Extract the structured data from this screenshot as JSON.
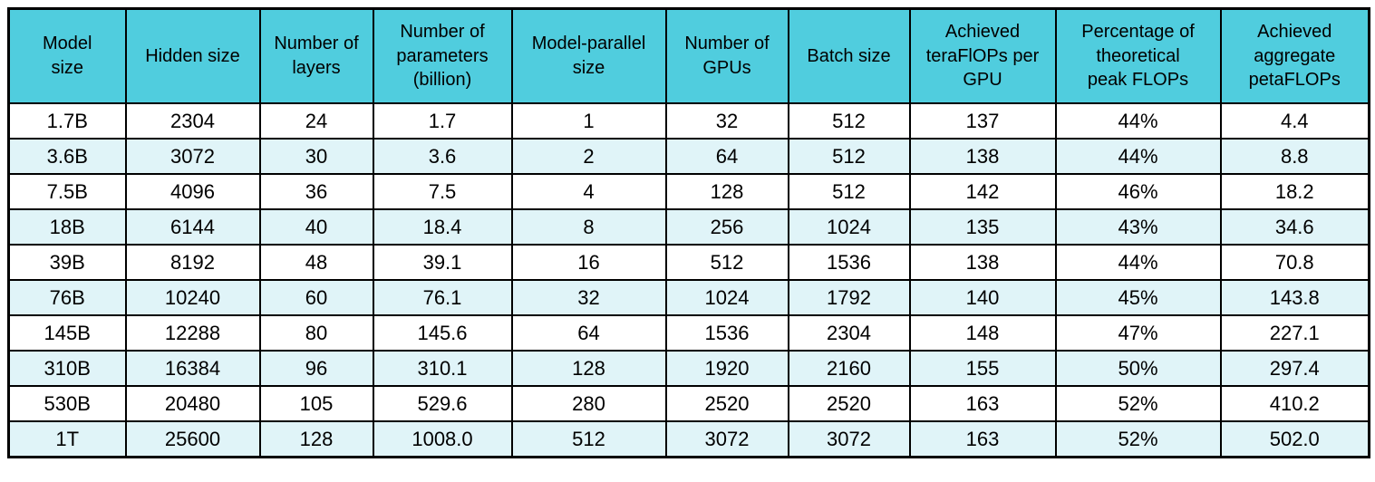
{
  "style": {
    "header_bg": "#50cdde",
    "row_bg": "#ffffff",
    "row_alt_bg": "#e0f4f8",
    "border_color": "#000000",
    "text_color": "#000000"
  },
  "chart_data": {
    "type": "table",
    "columns": [
      "Model\nsize",
      "Hidden size",
      "Number of\nlayers",
      "Number of\nparameters\n(billion)",
      "Model-parallel\nsize",
      "Number of\nGPUs",
      "Batch size",
      "Achieved\nteraFlOPs per\nGPU",
      "Percentage of\ntheoretical\npeak FLOPs",
      "Achieved\naggregate\npetaFLOPs"
    ],
    "rows": [
      [
        "1.7B",
        "2304",
        "24",
        "1.7",
        "1",
        "32",
        "512",
        "137",
        "44%",
        "4.4"
      ],
      [
        "3.6B",
        "3072",
        "30",
        "3.6",
        "2",
        "64",
        "512",
        "138",
        "44%",
        "8.8"
      ],
      [
        "7.5B",
        "4096",
        "36",
        "7.5",
        "4",
        "128",
        "512",
        "142",
        "46%",
        "18.2"
      ],
      [
        "18B",
        "6144",
        "40",
        "18.4",
        "8",
        "256",
        "1024",
        "135",
        "43%",
        "34.6"
      ],
      [
        "39B",
        "8192",
        "48",
        "39.1",
        "16",
        "512",
        "1536",
        "138",
        "44%",
        "70.8"
      ],
      [
        "76B",
        "10240",
        "60",
        "76.1",
        "32",
        "1024",
        "1792",
        "140",
        "45%",
        "143.8"
      ],
      [
        "145B",
        "12288",
        "80",
        "145.6",
        "64",
        "1536",
        "2304",
        "148",
        "47%",
        "227.1"
      ],
      [
        "310B",
        "16384",
        "96",
        "310.1",
        "128",
        "1920",
        "2160",
        "155",
        "50%",
        "297.4"
      ],
      [
        "530B",
        "20480",
        "105",
        "529.6",
        "280",
        "2520",
        "2520",
        "163",
        "52%",
        "410.2"
      ],
      [
        "1T",
        "25600",
        "128",
        "1008.0",
        "512",
        "3072",
        "3072",
        "163",
        "52%",
        "502.0"
      ]
    ]
  }
}
